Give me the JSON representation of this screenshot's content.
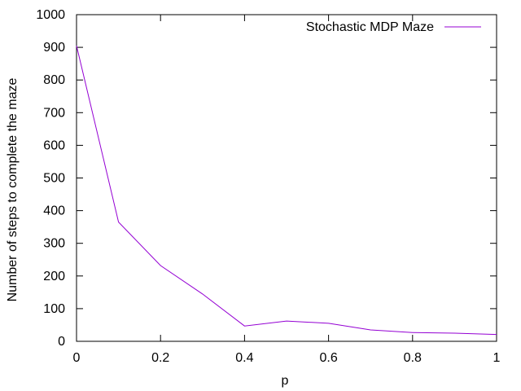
{
  "chart_data": {
    "type": "line",
    "title": "",
    "xlabel": "p",
    "ylabel": "Number of steps to complete the maze",
    "xlim": [
      0,
      1
    ],
    "ylim": [
      0,
      1000
    ],
    "x_ticks": [
      0,
      0.2,
      0.4,
      0.6,
      0.8,
      1
    ],
    "x_tick_labels": [
      "0",
      "0.2",
      "0.4",
      "0.6",
      "0.8",
      "1"
    ],
    "y_ticks": [
      0,
      100,
      200,
      300,
      400,
      500,
      600,
      700,
      800,
      900,
      1000
    ],
    "y_tick_labels": [
      "0",
      "100",
      "200",
      "300",
      "400",
      "500",
      "600",
      "700",
      "800",
      "900",
      "1000"
    ],
    "grid": false,
    "legend_position": "top-right",
    "series": [
      {
        "name": "Stochastic MDP Maze",
        "color": "#9400d3",
        "x": [
          0,
          0.1,
          0.2,
          0.3,
          0.4,
          0.5,
          0.6,
          0.7,
          0.8,
          0.9,
          1.0
        ],
        "y": [
          905,
          365,
          232,
          145,
          47,
          62,
          55,
          35,
          27,
          25,
          21
        ]
      }
    ]
  }
}
